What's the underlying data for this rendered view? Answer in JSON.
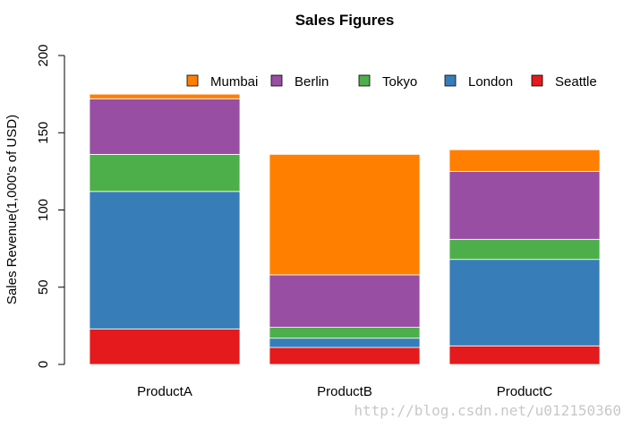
{
  "chart_data": {
    "type": "bar",
    "stacked": true,
    "title": "Sales Figures",
    "xlabel": "",
    "ylabel": "Sales Revenue(1,000's of USD)",
    "ylim": [
      0,
      200
    ],
    "yticks": [
      0,
      50,
      100,
      150,
      200
    ],
    "categories": [
      "ProductA",
      "ProductB",
      "ProductC"
    ],
    "series": [
      {
        "name": "Seattle",
        "color": "#E41A1C",
        "values": [
          23,
          11,
          12
        ]
      },
      {
        "name": "London",
        "color": "#377EB8",
        "values": [
          89,
          6,
          56
        ]
      },
      {
        "name": "Tokyo",
        "color": "#4DAF4A",
        "values": [
          24,
          7,
          13
        ]
      },
      {
        "name": "Berlin",
        "color": "#984EA3",
        "values": [
          36,
          34,
          44
        ]
      },
      {
        "name": "Mumbai",
        "color": "#FF7F00",
        "values": [
          3,
          78,
          14
        ]
      }
    ],
    "legend": {
      "placement": "top-right",
      "order": [
        "Mumbai",
        "Berlin",
        "Tokyo",
        "London",
        "Seattle"
      ]
    }
  },
  "watermark": "http://blog.csdn.net/u012150360"
}
